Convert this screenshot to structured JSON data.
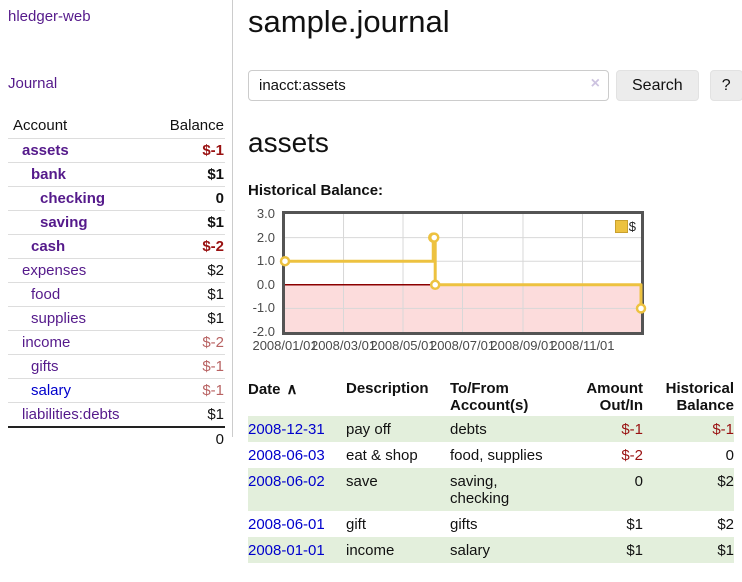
{
  "sidebar": {
    "brand": "hledger-web",
    "journal_link": "Journal",
    "accounts_header": {
      "account": "Account",
      "balance": "Balance"
    },
    "accounts": [
      {
        "name": "assets",
        "depth": 1,
        "bold": true,
        "balance": "$-1",
        "balance_style": "neg-strong"
      },
      {
        "name": "bank",
        "depth": 2,
        "bold": true,
        "balance": "$1",
        "balance_style": "pos"
      },
      {
        "name": "checking",
        "depth": 3,
        "bold": true,
        "balance": "0",
        "balance_style": "pos"
      },
      {
        "name": "saving",
        "depth": 3,
        "bold": true,
        "balance": "$1",
        "balance_style": "pos"
      },
      {
        "name": "cash",
        "depth": 2,
        "bold": true,
        "balance": "$-2",
        "balance_style": "neg-strong"
      },
      {
        "name": "expenses",
        "depth": 1,
        "bold": false,
        "balance": "$2",
        "balance_style": "pos"
      },
      {
        "name": "food",
        "depth": 2,
        "bold": false,
        "balance": "$1",
        "balance_style": "pos"
      },
      {
        "name": "supplies",
        "depth": 2,
        "bold": false,
        "balance": "$1",
        "balance_style": "pos"
      },
      {
        "name": "income",
        "depth": 1,
        "bold": false,
        "balance": "$-2",
        "balance_style": "neg-soft"
      },
      {
        "name": "gifts",
        "depth": 2,
        "bold": false,
        "balance": "$-1",
        "balance_style": "neg-soft"
      },
      {
        "name": "salary",
        "depth": 2,
        "bold": false,
        "link_color": "blue",
        "balance": "$-1",
        "balance_style": "neg-soft"
      },
      {
        "name": "liabilities:debts",
        "depth": 1,
        "bold": false,
        "balance": "$1",
        "balance_style": "pos"
      }
    ],
    "total": "0"
  },
  "header": {
    "title": "sample.journal"
  },
  "search": {
    "value": "inacct:assets",
    "clear_icon": "×",
    "button_label": "Search",
    "help_label": "?"
  },
  "account_page": {
    "heading": "assets"
  },
  "chart_data": {
    "type": "line",
    "title": "Historical Balance:",
    "step": true,
    "x_range": [
      "2008-01-01",
      "2008-12-31"
    ],
    "ylim": [
      -2,
      3
    ],
    "ytick_values": [
      3,
      2,
      1,
      0,
      -1,
      -2
    ],
    "xtick_labels": [
      "2008/01/01",
      "2008/03/01",
      "2008/05/01",
      "2008/07/01",
      "2008/09/01",
      "2008/11/01"
    ],
    "series": [
      {
        "name": "$",
        "color": "#edc240",
        "points": [
          {
            "x": "2008-01-01",
            "y": 1
          },
          {
            "x": "2008-06-01",
            "y": 2
          },
          {
            "x": "2008-06-02",
            "y": 2
          },
          {
            "x": "2008-06-03",
            "y": 0
          },
          {
            "x": "2008-12-31",
            "y": -1
          }
        ]
      }
    ],
    "legend_position": "top-right",
    "grid": true,
    "grid_color": "#d8d8d8",
    "negative_fill": "#fcdcdc",
    "zero_line_color": "#8b0000"
  },
  "register": {
    "columns": [
      "Date",
      "Description",
      "To/From\nAccount(s)",
      "Amount\nOut/In",
      "Historical\nBalance"
    ],
    "sort_arrow": "∧",
    "rows": [
      {
        "date": "2008-12-31",
        "description": "pay off",
        "accounts": "debts",
        "amount": "$-1",
        "amount_neg": true,
        "balance": "$-1",
        "balance_neg": true
      },
      {
        "date": "2008-06-03",
        "description": "eat & shop",
        "accounts": "food, supplies",
        "amount": "$-2",
        "amount_neg": true,
        "balance": "0",
        "balance_neg": false
      },
      {
        "date": "2008-06-02",
        "description": "save",
        "accounts": "saving,\nchecking",
        "amount": "0",
        "amount_neg": false,
        "balance": "$2",
        "balance_neg": false
      },
      {
        "date": "2008-06-01",
        "description": "gift",
        "accounts": "gifts",
        "amount": "$1",
        "amount_neg": false,
        "balance": "$2",
        "balance_neg": false
      },
      {
        "date": "2008-01-01",
        "description": "income",
        "accounts": "salary",
        "amount": "$1",
        "amount_neg": false,
        "balance": "$1",
        "balance_neg": false
      }
    ]
  },
  "colors": {
    "visited_link": "#551a8b",
    "unvisited_link": "#0000cc",
    "negative_strong": "#991111",
    "negative_soft": "#b86262",
    "row_highlight": "#e3efdc",
    "series_yellow": "#edc240"
  }
}
